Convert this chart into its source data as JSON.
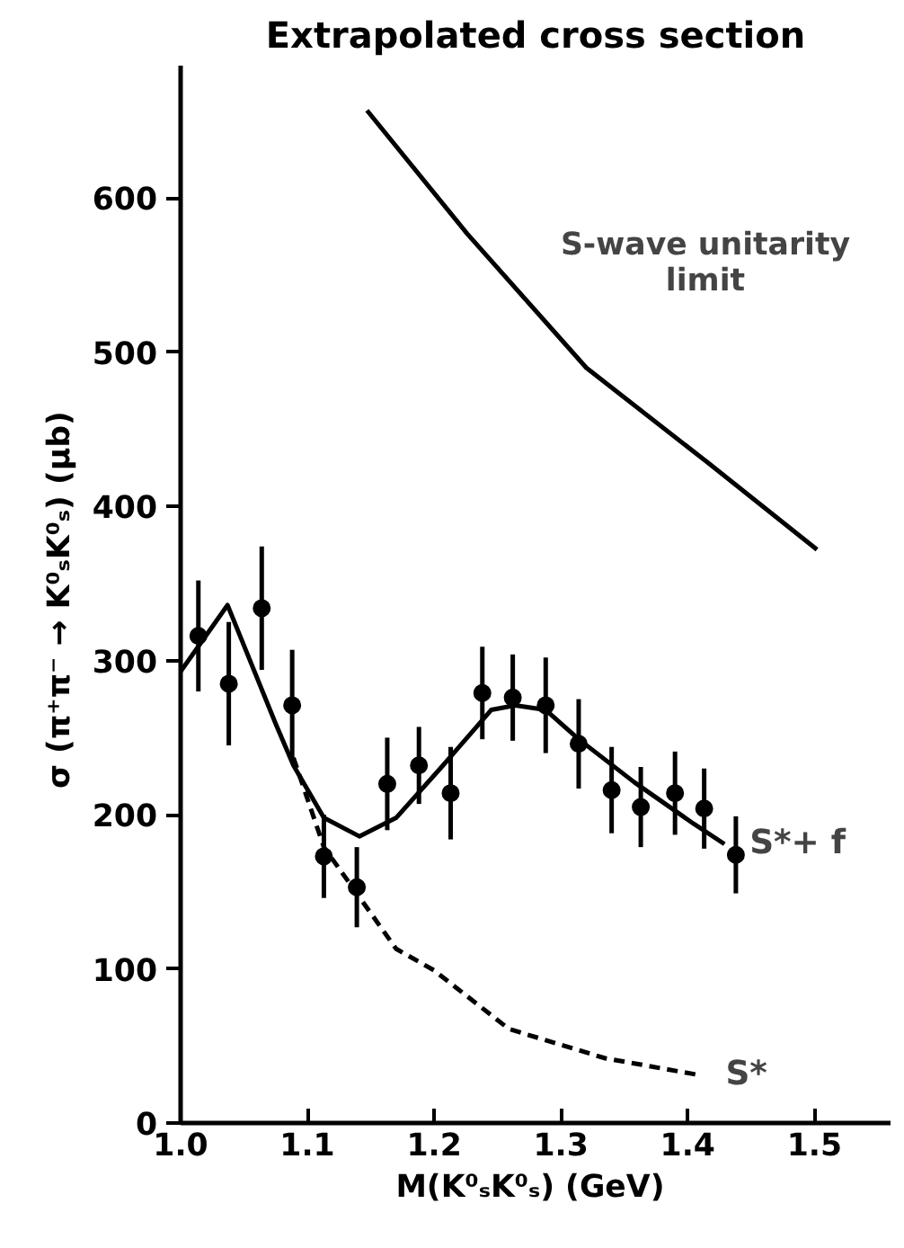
{
  "chart_data": {
    "type": "scatter",
    "title": "Extrapolated cross section",
    "xlabel": "M(K⁰ₛK⁰ₛ)  (GeV)",
    "ylabel": "σ (π⁺π⁻ → K⁰ₛK⁰ₛ)  (μb)",
    "xlim": [
      1.0,
      1.56
    ],
    "ylim": [
      0,
      686
    ],
    "xticks": [
      {
        "value": 1.0,
        "label": "1.0"
      },
      1.1,
      1.2,
      1.3,
      1.4,
      1.5
    ],
    "yticks": [
      0,
      100,
      200,
      300,
      400,
      500,
      600
    ],
    "grid": false,
    "annotations": [
      "S-wave unitarity limit"
    ],
    "series": [
      {
        "color": "#000000",
        "marker": "circle",
        "x": [
          1.014,
          1.038,
          1.064,
          1.088,
          1.113,
          1.139,
          1.163,
          1.188,
          1.213,
          1.238,
          1.262,
          1.288,
          1.314,
          1.34,
          1.363,
          1.39,
          1.413,
          1.438
        ],
        "values": [
          316,
          285,
          334,
          271,
          173,
          153,
          220,
          232,
          214,
          279,
          276,
          271,
          246,
          216,
          205,
          214,
          204,
          174
        ],
        "errors": [
          36,
          40,
          40,
          36,
          27,
          26,
          30,
          25,
          30,
          30,
          28,
          31,
          29,
          28,
          26,
          27,
          26,
          25
        ]
      },
      {
        "type": "line",
        "name": "S*+ f",
        "color": "#000000",
        "line_style": "solid",
        "x": [
          1.0,
          1.037,
          1.075,
          1.089,
          1.113,
          1.141,
          1.17,
          1.207,
          1.245,
          1.264,
          1.288,
          1.314,
          1.358,
          1.405,
          1.429
        ],
        "values": [
          293,
          336,
          259,
          232,
          198,
          186,
          198,
          232,
          268,
          271,
          268,
          249,
          221,
          194,
          181
        ]
      },
      {
        "type": "line",
        "name": "S*",
        "color": "#000000",
        "line_style": "dashed",
        "x": [
          1.089,
          1.113,
          1.17,
          1.2,
          1.259,
          1.335,
          1.41
        ],
        "values": [
          237,
          179,
          113,
          99,
          61,
          42,
          31
        ]
      },
      {
        "type": "line",
        "color": "#000000",
        "line_style": "solid",
        "x": [
          1.147,
          1.226,
          1.32,
          1.415,
          1.502
        ],
        "values": [
          657,
          577,
          490,
          429,
          372
        ]
      }
    ]
  }
}
